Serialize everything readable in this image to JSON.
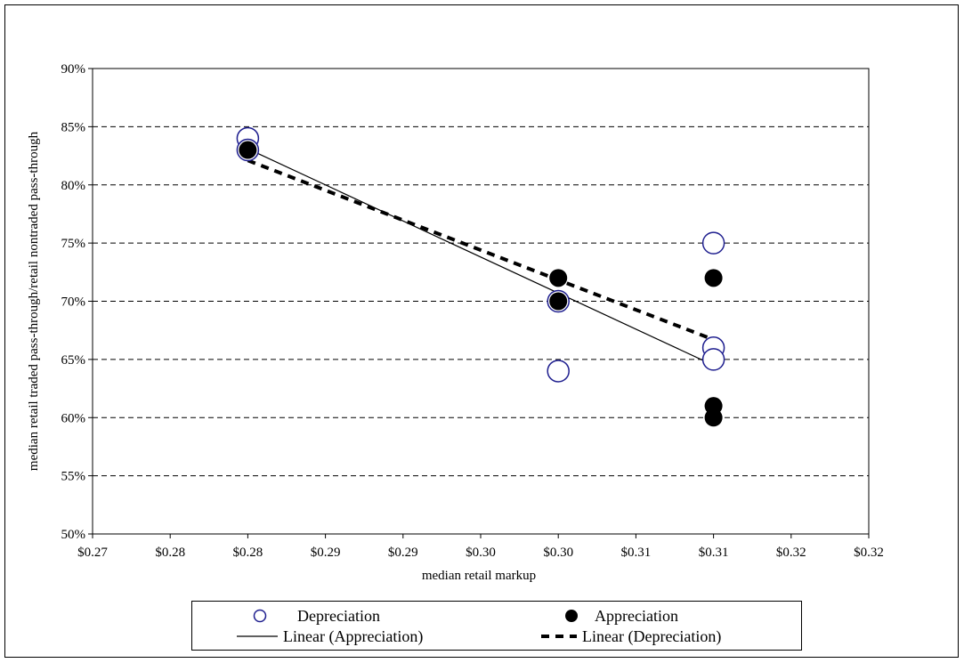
{
  "chart_data": {
    "type": "scatter",
    "xlabel": "median retail markup",
    "ylabel": "median retail traded pass-through/retail nontraded pass-through",
    "xlim": [
      0.27,
      0.32
    ],
    "ylim": [
      0.5,
      0.9
    ],
    "x_ticks": [
      "$0.27",
      "$0.28",
      "$0.28",
      "$0.29",
      "$0.29",
      "$0.30",
      "$0.30",
      "$0.31",
      "$0.31",
      "$0.32",
      "$0.32"
    ],
    "y_ticks": [
      "50%",
      "55%",
      "60%",
      "65%",
      "70%",
      "75%",
      "80%",
      "85%",
      "90%"
    ],
    "grid": "horizontal dashed",
    "legend_placement": "bottom",
    "series": [
      {
        "name": "Depreciation",
        "marker": "open-circle",
        "color": "#1f1f8f",
        "points": [
          {
            "x": 0.28,
            "y": 0.84
          },
          {
            "x": 0.28,
            "y": 0.83
          },
          {
            "x": 0.3,
            "y": 0.7
          },
          {
            "x": 0.3,
            "y": 0.64
          },
          {
            "x": 0.31,
            "y": 0.75
          },
          {
            "x": 0.31,
            "y": 0.66
          },
          {
            "x": 0.31,
            "y": 0.65
          }
        ]
      },
      {
        "name": "Appreciation",
        "marker": "filled-circle",
        "color": "#000000",
        "points": [
          {
            "x": 0.28,
            "y": 0.83
          },
          {
            "x": 0.3,
            "y": 0.72
          },
          {
            "x": 0.3,
            "y": 0.7
          },
          {
            "x": 0.31,
            "y": 0.72
          },
          {
            "x": 0.31,
            "y": 0.61
          },
          {
            "x": 0.31,
            "y": 0.6
          }
        ]
      }
    ],
    "trendlines": [
      {
        "name": "Linear (Appreciation)",
        "style": "solid",
        "from": {
          "x": 0.28,
          "y": 0.831
        },
        "to": {
          "x": 0.31,
          "y": 0.645
        }
      },
      {
        "name": "Linear (Depreciation)",
        "style": "dashed",
        "from": {
          "x": 0.28,
          "y": 0.821
        },
        "to": {
          "x": 0.31,
          "y": 0.667
        }
      }
    ]
  },
  "legend": {
    "depreciation": "Depreciation",
    "appreciation": "Appreciation",
    "linear_appreciation": "Linear (Appreciation)",
    "linear_depreciation": "Linear (Depreciation)"
  }
}
